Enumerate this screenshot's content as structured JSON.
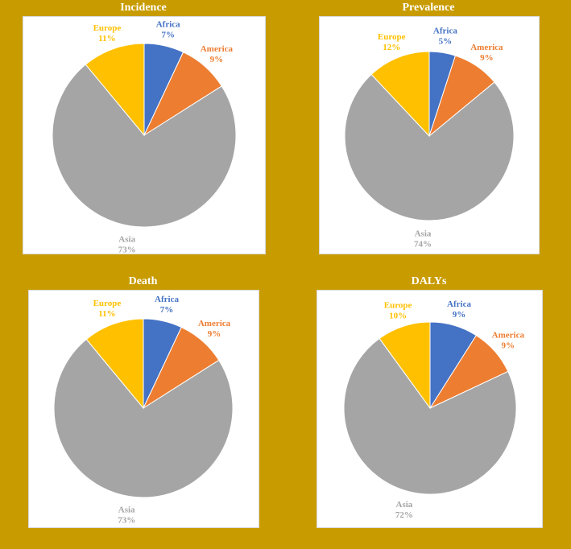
{
  "colors": {
    "background": "#c89b00",
    "Africa": "#4472c4",
    "America": "#ed7d31",
    "Asia": "#a5a5a5",
    "Europe": "#ffc000"
  },
  "chart_data": [
    {
      "type": "pie",
      "title": "Incidence",
      "categories": [
        "Africa",
        "America",
        "Asia",
        "Europe"
      ],
      "values": [
        7,
        9,
        73,
        11
      ],
      "labels": [
        "7%",
        "9%",
        "73%",
        "11%"
      ]
    },
    {
      "type": "pie",
      "title": "Prevalence",
      "categories": [
        "Africa",
        "America",
        "Asia",
        "Europe"
      ],
      "values": [
        5,
        9,
        74,
        12
      ],
      "labels": [
        "5%",
        "9%",
        "74%",
        "12%"
      ]
    },
    {
      "type": "pie",
      "title": "Death",
      "categories": [
        "Africa",
        "America",
        "Asia",
        "Europe"
      ],
      "values": [
        7,
        9,
        73,
        11
      ],
      "labels": [
        "7%",
        "9%",
        "73%",
        "11%"
      ]
    },
    {
      "type": "pie",
      "title": "DALYs",
      "categories": [
        "Africa",
        "America",
        "Asia",
        "Europe"
      ],
      "values": [
        9,
        9,
        72,
        10
      ],
      "labels": [
        "9%",
        "9%",
        "72%",
        "10%"
      ]
    }
  ]
}
